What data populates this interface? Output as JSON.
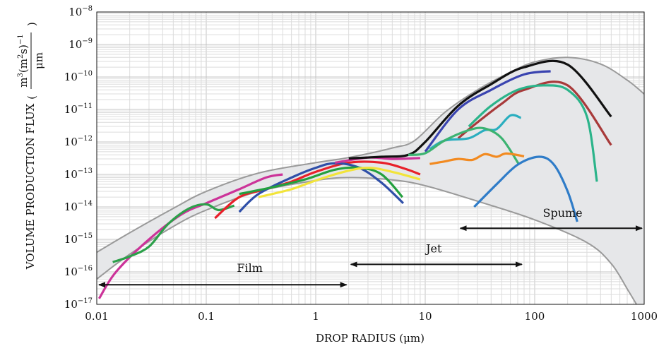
{
  "chart_data": {
    "type": "line",
    "title": "",
    "xlabel": "DROP RADIUS (μm)",
    "ylabel": "VOLUME PRODUCTION FLUX",
    "ylabel_unit": {
      "num_base": "m",
      "num_exp": "3",
      "num_mid": "(m",
      "num_mid_exp": "2",
      "num_tail": "s)",
      "num_tail_exp": "−1",
      "den": "μm"
    },
    "xscale": "log",
    "yscale": "log",
    "xlim": [
      0.01,
      1000
    ],
    "ylim": [
      1e-17,
      1e-08
    ],
    "grid": true,
    "legend": "none",
    "x_ticks": [
      {
        "value": 0.01,
        "label": "0.01"
      },
      {
        "value": 0.1,
        "label": "0.1"
      },
      {
        "value": 1,
        "label": "1"
      },
      {
        "value": 10,
        "label": "10"
      },
      {
        "value": 100,
        "label": "100"
      },
      {
        "value": 1000,
        "label": "1000"
      }
    ],
    "y_ticks": [
      {
        "value": 1e-08,
        "base": "10",
        "exp": "−8"
      },
      {
        "value": 1e-09,
        "base": "10",
        "exp": "−9"
      },
      {
        "value": 1e-10,
        "base": "10",
        "exp": "−10"
      },
      {
        "value": 1e-11,
        "base": "10",
        "exp": "−11"
      },
      {
        "value": 1e-12,
        "base": "10",
        "exp": "−12"
      },
      {
        "value": 1e-13,
        "base": "10",
        "exp": "−13"
      },
      {
        "value": 1e-14,
        "base": "10",
        "exp": "−14"
      },
      {
        "value": 1e-15,
        "base": "10",
        "exp": "−15"
      },
      {
        "value": 1e-16,
        "base": "10",
        "exp": "−16"
      },
      {
        "value": 1e-17,
        "base": "10",
        "exp": "−17"
      }
    ],
    "envelope": {
      "color": "#9a9a9a",
      "fill": "#e6e7e9",
      "upper": [
        [
          0.01,
          4e-16
        ],
        [
          0.02,
          1.6e-15
        ],
        [
          0.05,
          9e-15
        ],
        [
          0.1,
          3e-14
        ],
        [
          0.3,
          1.1e-13
        ],
        [
          1,
          2.3e-13
        ],
        [
          2,
          3.3e-13
        ],
        [
          5,
          6.5e-13
        ],
        [
          8,
          1.1e-12
        ],
        [
          15,
          8e-12
        ],
        [
          30,
          4e-11
        ],
        [
          60,
          1.4e-10
        ],
        [
          100,
          2.9e-10
        ],
        [
          200,
          4e-10
        ],
        [
          400,
          2.5e-10
        ],
        [
          700,
          8e-11
        ],
        [
          1000,
          3e-11
        ]
      ],
      "lower": [
        [
          0.01,
          6e-17
        ],
        [
          0.02,
          3.5e-16
        ],
        [
          0.05,
          2.5e-15
        ],
        [
          0.1,
          8e-15
        ],
        [
          0.3,
          3e-14
        ],
        [
          1,
          6.5e-14
        ],
        [
          2,
          8e-14
        ],
        [
          5,
          6.8e-14
        ],
        [
          10,
          4.5e-14
        ],
        [
          30,
          1.5e-14
        ],
        [
          100,
          4e-15
        ],
        [
          300,
          8e-16
        ],
        [
          500,
          1.8e-16
        ],
        [
          700,
          3e-17
        ],
        [
          850,
          1e-17
        ]
      ]
    },
    "series": [
      {
        "color": "#cc3399",
        "points": [
          [
            0.0105,
            1.5e-17
          ],
          [
            0.015,
            1e-16
          ],
          [
            0.03,
            1e-15
          ],
          [
            0.06,
            6e-15
          ],
          [
            0.1,
            1.3e-14
          ],
          [
            0.2,
            3.5e-14
          ],
          [
            0.35,
            8e-14
          ],
          [
            0.5,
            1e-13
          ]
        ]
      },
      {
        "color": "#2ca04a",
        "points": [
          [
            0.014,
            2e-16
          ],
          [
            0.02,
            3e-16
          ],
          [
            0.03,
            6e-16
          ],
          [
            0.045,
            3e-15
          ],
          [
            0.07,
            9e-15
          ],
          [
            0.1,
            1.2e-14
          ],
          [
            0.13,
            8e-15
          ],
          [
            0.18,
            1.1e-14
          ]
        ]
      },
      {
        "color": "#e8202a",
        "points": [
          [
            0.12,
            4.5e-15
          ],
          [
            0.2,
            2e-14
          ],
          [
            0.35,
            3.5e-14
          ],
          [
            0.6,
            6e-14
          ],
          [
            1,
            1.2e-13
          ],
          [
            2,
            2.3e-13
          ],
          [
            4,
            2.3e-13
          ],
          [
            6.5,
            1.5e-13
          ],
          [
            9,
            1e-13
          ]
        ]
      },
      {
        "color": "#2f4fa8",
        "points": [
          [
            0.2,
            7e-15
          ],
          [
            0.3,
            2.5e-14
          ],
          [
            0.6,
            8e-14
          ],
          [
            1,
            1.6e-13
          ],
          [
            1.5,
            2.2e-13
          ],
          [
            2.5,
            1.6e-13
          ],
          [
            4,
            5.5e-14
          ],
          [
            6.3,
            1.3e-14
          ]
        ]
      },
      {
        "color": "#23a03e",
        "points": [
          [
            0.2,
            2.5e-14
          ],
          [
            0.4,
            4e-14
          ],
          [
            0.8,
            7e-14
          ],
          [
            1.5,
            1.4e-13
          ],
          [
            2.5,
            1.6e-13
          ],
          [
            4,
            1e-13
          ],
          [
            6.2,
            2e-14
          ]
        ]
      },
      {
        "color": "#f2e43a",
        "points": [
          [
            0.3,
            2e-14
          ],
          [
            0.6,
            3.5e-14
          ],
          [
            1,
            6.5e-14
          ],
          [
            1.8,
            1.2e-13
          ],
          [
            3,
            1.6e-13
          ],
          [
            5,
            1.2e-13
          ],
          [
            9,
            7e-14
          ]
        ]
      },
      {
        "color": "#cc3399",
        "points": [
          [
            1.5,
            2.3e-13
          ],
          [
            3,
            3.3e-13
          ],
          [
            5,
            3e-13
          ],
          [
            9,
            3.2e-13
          ]
        ]
      },
      {
        "color": "#111111",
        "points": [
          [
            2,
            3.1e-13
          ],
          [
            4,
            3.5e-13
          ],
          [
            7,
            4e-13
          ],
          [
            10,
            1e-12
          ],
          [
            20,
            1.3e-11
          ],
          [
            40,
            6e-11
          ],
          [
            80,
            2e-10
          ],
          [
            200,
            2.4e-10
          ],
          [
            500,
            6e-12
          ]
        ]
      },
      {
        "color": "#3a44b0",
        "points": [
          [
            10,
            5e-13
          ],
          [
            20,
            1e-11
          ],
          [
            40,
            4e-11
          ],
          [
            80,
            1.2e-10
          ],
          [
            140,
            1.5e-10
          ]
        ]
      },
      {
        "color": "#a83a3a",
        "points": [
          [
            20,
            1.3e-12
          ],
          [
            30,
            4e-12
          ],
          [
            50,
            1.5e-11
          ],
          [
            80,
            4e-11
          ],
          [
            200,
            5.5e-11
          ],
          [
            500,
            8e-13
          ]
        ]
      },
      {
        "color": "#2bb48a",
        "points": [
          [
            25,
            3e-12
          ],
          [
            40,
            1.3e-11
          ],
          [
            70,
            4e-11
          ],
          [
            120,
            5.5e-11
          ],
          [
            200,
            4e-11
          ],
          [
            300,
            6e-12
          ],
          [
            370,
            6e-14
          ]
        ]
      },
      {
        "color": "#2aaebf",
        "points": [
          [
            11,
            6e-13
          ],
          [
            15,
            1.1e-12
          ],
          [
            25,
            1.3e-12
          ],
          [
            35,
            2.3e-12
          ],
          [
            45,
            2.5e-12
          ],
          [
            60,
            6.5e-12
          ],
          [
            75,
            5.5e-12
          ]
        ]
      },
      {
        "color": "#3cb371",
        "points": [
          [
            7,
            4e-13
          ],
          [
            10,
            4.5e-13
          ],
          [
            15,
            1.1e-12
          ],
          [
            25,
            2.3e-12
          ],
          [
            35,
            2.6e-12
          ],
          [
            50,
            1.3e-12
          ],
          [
            72,
            2e-13
          ]
        ]
      },
      {
        "color": "#f28a20",
        "points": [
          [
            11,
            2.1e-13
          ],
          [
            15,
            2.5e-13
          ],
          [
            20,
            3e-13
          ],
          [
            27,
            2.8e-13
          ],
          [
            35,
            4.2e-13
          ],
          [
            45,
            3.5e-13
          ],
          [
            55,
            4.4e-13
          ],
          [
            80,
            3.6e-13
          ]
        ]
      },
      {
        "color": "#2f7cc8",
        "points": [
          [
            28,
            1e-14
          ],
          [
            45,
            5e-14
          ],
          [
            70,
            2e-13
          ],
          [
            110,
            3.5e-13
          ],
          [
            150,
            2e-13
          ],
          [
            200,
            3e-14
          ],
          [
            245,
            3.5e-15
          ]
        ]
      }
    ],
    "annotations": [
      {
        "label": "Film",
        "range": [
          0.01,
          2
        ],
        "y": 4e-17,
        "label_at": [
          0.25,
          1e-16
        ]
      },
      {
        "label": "Jet",
        "range": [
          2,
          80
        ],
        "y": 1.7e-16,
        "label_at": [
          12,
          4e-16
        ]
      },
      {
        "label": "Spume",
        "range": [
          20,
          1000
        ],
        "y": 2.2e-15,
        "label_at": [
          180,
          5e-15
        ]
      }
    ]
  }
}
